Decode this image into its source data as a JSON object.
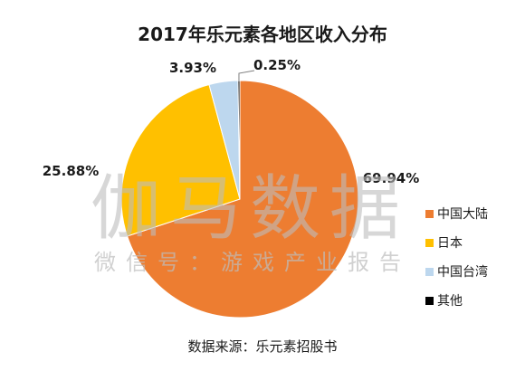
{
  "chart_data": {
    "type": "pie",
    "title": "2017年乐元素各地区收入分布",
    "categories": [
      "中国大陆",
      "日本",
      "中国台湾",
      "其他"
    ],
    "values": [
      69.94,
      25.88,
      3.93,
      0.25
    ],
    "value_labels": [
      "69.94%",
      "25.88%",
      "3.93%",
      "0.25%"
    ],
    "colors": [
      "#ED7D31",
      "#FFC000",
      "#BDD7EE",
      "#000000"
    ],
    "legend_position": "right"
  },
  "watermark": {
    "main": "伽马数据",
    "sub": "微信号：游戏产业报告"
  },
  "source": "数据来源：乐元素招股书"
}
